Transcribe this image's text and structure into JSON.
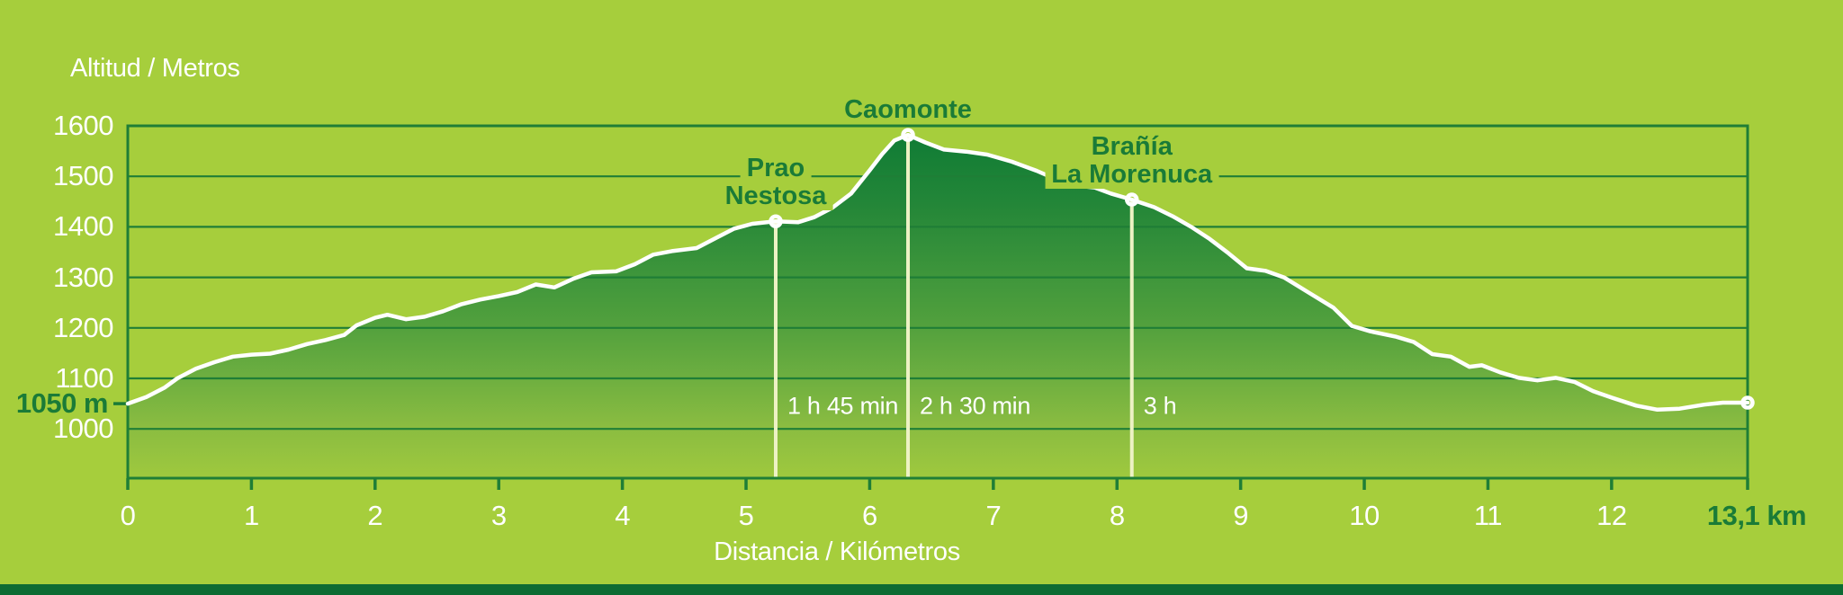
{
  "page": {
    "background_color": "#a6ce3c",
    "dark_green": "#1a7b37",
    "grid_color": "#1f7e36",
    "profile_line_color": "#ffffff",
    "marker_line_color": "#edf2c4",
    "bottom_bar_color": "#0c6b33"
  },
  "chart_data": {
    "type": "area",
    "title": "",
    "ylabel": "Altitud / Metros",
    "xlabel": "Distancia / Kilómetros",
    "xlim": [
      0,
      13.1
    ],
    "ylim_axis": [
      1000,
      1600
    ],
    "ylim_drawn_bottom": 900,
    "grid": "horizontal",
    "y_ticks": [
      1600,
      1500,
      1400,
      1300,
      1200,
      1100,
      1000
    ],
    "x_ticks": [
      0,
      1,
      2,
      3,
      4,
      5,
      6,
      7,
      8,
      9,
      10,
      11,
      12
    ],
    "start_elevation_label": "1050 m",
    "end_distance_label": "13,1 km",
    "points": [
      [
        0,
        1050
      ],
      [
        0.15,
        1063
      ],
      [
        0.3,
        1082
      ],
      [
        0.4,
        1100
      ],
      [
        0.55,
        1119
      ],
      [
        0.7,
        1132
      ],
      [
        0.85,
        1143
      ],
      [
        1.0,
        1147
      ],
      [
        1.15,
        1149
      ],
      [
        1.3,
        1157
      ],
      [
        1.45,
        1168
      ],
      [
        1.6,
        1176
      ],
      [
        1.75,
        1186
      ],
      [
        1.85,
        1205
      ],
      [
        2.0,
        1220
      ],
      [
        2.1,
        1226
      ],
      [
        2.25,
        1217
      ],
      [
        2.4,
        1222
      ],
      [
        2.55,
        1233
      ],
      [
        2.7,
        1247
      ],
      [
        2.85,
        1256
      ],
      [
        3.0,
        1263
      ],
      [
        3.15,
        1271
      ],
      [
        3.3,
        1286
      ],
      [
        3.45,
        1280
      ],
      [
        3.6,
        1297
      ],
      [
        3.75,
        1310
      ],
      [
        3.95,
        1312
      ],
      [
        4.1,
        1326
      ],
      [
        4.25,
        1345
      ],
      [
        4.4,
        1352
      ],
      [
        4.6,
        1358
      ],
      [
        4.75,
        1377
      ],
      [
        4.9,
        1396
      ],
      [
        5.05,
        1406
      ],
      [
        5.24,
        1411
      ],
      [
        5.42,
        1409
      ],
      [
        5.55,
        1419
      ],
      [
        5.7,
        1438
      ],
      [
        5.85,
        1466
      ],
      [
        6.0,
        1512
      ],
      [
        6.1,
        1544
      ],
      [
        6.2,
        1571
      ],
      [
        6.31,
        1582
      ],
      [
        6.45,
        1567
      ],
      [
        6.6,
        1553
      ],
      [
        6.78,
        1549
      ],
      [
        6.95,
        1543
      ],
      [
        7.15,
        1529
      ],
      [
        7.35,
        1511
      ],
      [
        7.5,
        1495
      ],
      [
        7.65,
        1482
      ],
      [
        7.82,
        1478
      ],
      [
        7.95,
        1466
      ],
      [
        8.12,
        1454
      ],
      [
        8.3,
        1439
      ],
      [
        8.45,
        1421
      ],
      [
        8.6,
        1400
      ],
      [
        8.75,
        1376
      ],
      [
        8.9,
        1348
      ],
      [
        9.05,
        1318
      ],
      [
        9.2,
        1313
      ],
      [
        9.35,
        1300
      ],
      [
        9.55,
        1270
      ],
      [
        9.75,
        1240
      ],
      [
        9.9,
        1204
      ],
      [
        10.05,
        1193
      ],
      [
        10.25,
        1183
      ],
      [
        10.4,
        1172
      ],
      [
        10.55,
        1148
      ],
      [
        10.7,
        1143
      ],
      [
        10.85,
        1123
      ],
      [
        10.95,
        1126
      ],
      [
        11.1,
        1112
      ],
      [
        11.25,
        1101
      ],
      [
        11.4,
        1096
      ],
      [
        11.55,
        1101
      ],
      [
        11.7,
        1093
      ],
      [
        11.85,
        1075
      ],
      [
        12.0,
        1062
      ],
      [
        12.2,
        1046
      ],
      [
        12.37,
        1038
      ],
      [
        12.55,
        1040
      ],
      [
        12.75,
        1048
      ],
      [
        12.9,
        1052
      ],
      [
        13.1,
        1052
      ]
    ],
    "waypoints": [
      {
        "name_lines": [
          "Prao",
          "Nestosa"
        ],
        "km": 5.24,
        "alt": 1411,
        "time": "1 h 45 min"
      },
      {
        "name_lines": [
          "Caomonte"
        ],
        "km": 6.31,
        "alt": 1582,
        "time": "2 h 30 min"
      },
      {
        "name_lines": [
          "Brañía",
          "La Morenuca"
        ],
        "km": 8.12,
        "alt": 1454,
        "time": "3 h"
      }
    ],
    "end_point": {
      "km": 13.1,
      "alt": 1052
    },
    "area_gradient": [
      {
        "offset": 0,
        "color": "#107c35"
      },
      {
        "offset": 0.2,
        "color": "#238638"
      },
      {
        "offset": 0.4,
        "color": "#3d953b"
      },
      {
        "offset": 0.55,
        "color": "#51a03d"
      },
      {
        "offset": 0.7,
        "color": "#6cae40"
      },
      {
        "offset": 0.85,
        "color": "#8abc41"
      },
      {
        "offset": 1,
        "color": "#9fc93e"
      }
    ],
    "legend": "none"
  },
  "labels": {
    "y_axis_title": "Altitud / Metros",
    "x_axis_title": "Distancia / Kilómetros",
    "start_elevation": "1050 m",
    "end_distance": "13,1 km"
  }
}
